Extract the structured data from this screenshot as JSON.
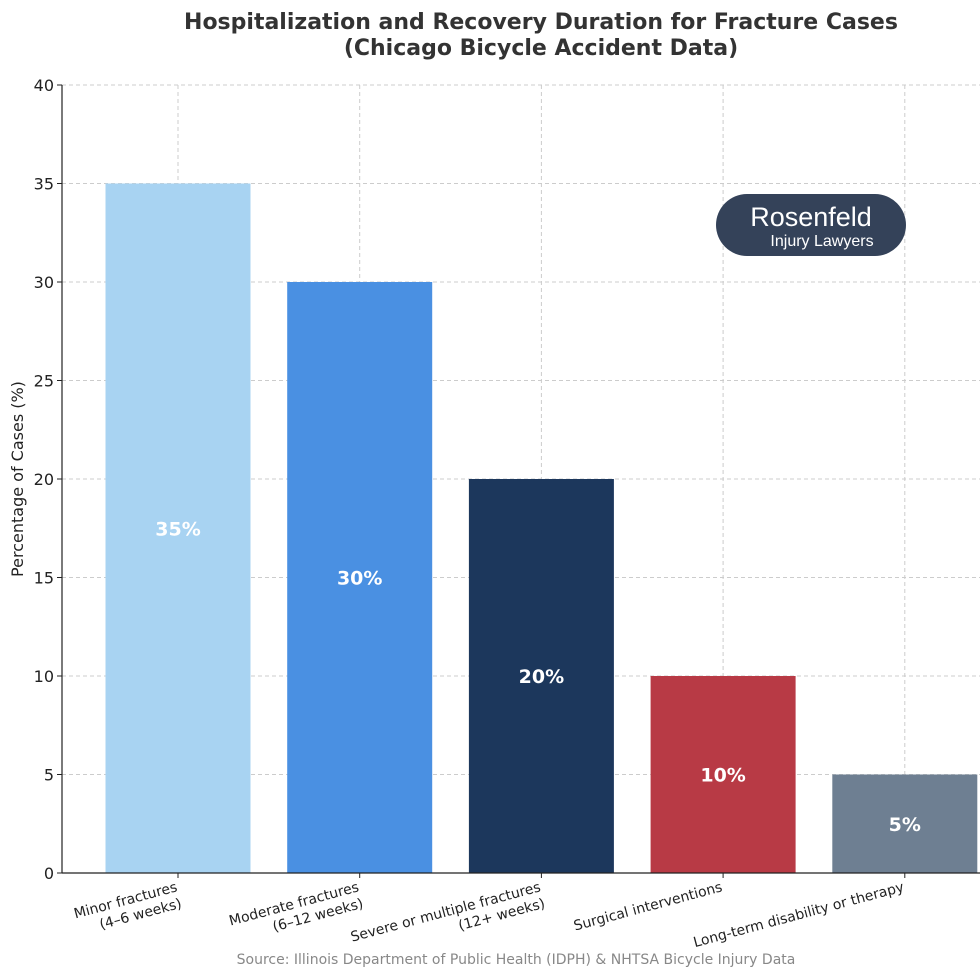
{
  "chart_data": {
    "type": "bar",
    "title_lines": [
      "Hospitalization and Recovery Duration for Fracture Cases",
      "(Chicago Bicycle Accident Data)"
    ],
    "xlabel": "",
    "ylabel": "Percentage of Cases (%)",
    "categories": [
      [
        "Minor fractures",
        "(4–6 weeks)"
      ],
      [
        "Moderate fractures",
        "(6–12 weeks)"
      ],
      [
        "Severe or multiple fractures",
        "(12+ weeks)"
      ],
      [
        "Surgical interventions"
      ],
      [
        "Long-term disability or therapy"
      ]
    ],
    "values": [
      35,
      30,
      20,
      10,
      5
    ],
    "data_labels": [
      "35%",
      "30%",
      "20%",
      "10%",
      "5%"
    ],
    "colors": [
      "#a8d3f2",
      "#4a90e2",
      "#1c375c",
      "#b83a45",
      "#6e7f92"
    ],
    "ylim": [
      0,
      40
    ],
    "yticks": [
      0,
      5,
      10,
      15,
      20,
      25,
      30,
      35,
      40
    ],
    "grid": true,
    "source": "Source: Illinois Department of Public Health (IDPH) & NHTSA Bicycle Injury Data"
  },
  "logo": {
    "line1": "Rosenfeld",
    "line2": "Injury Lawyers",
    "color": "#344259"
  }
}
